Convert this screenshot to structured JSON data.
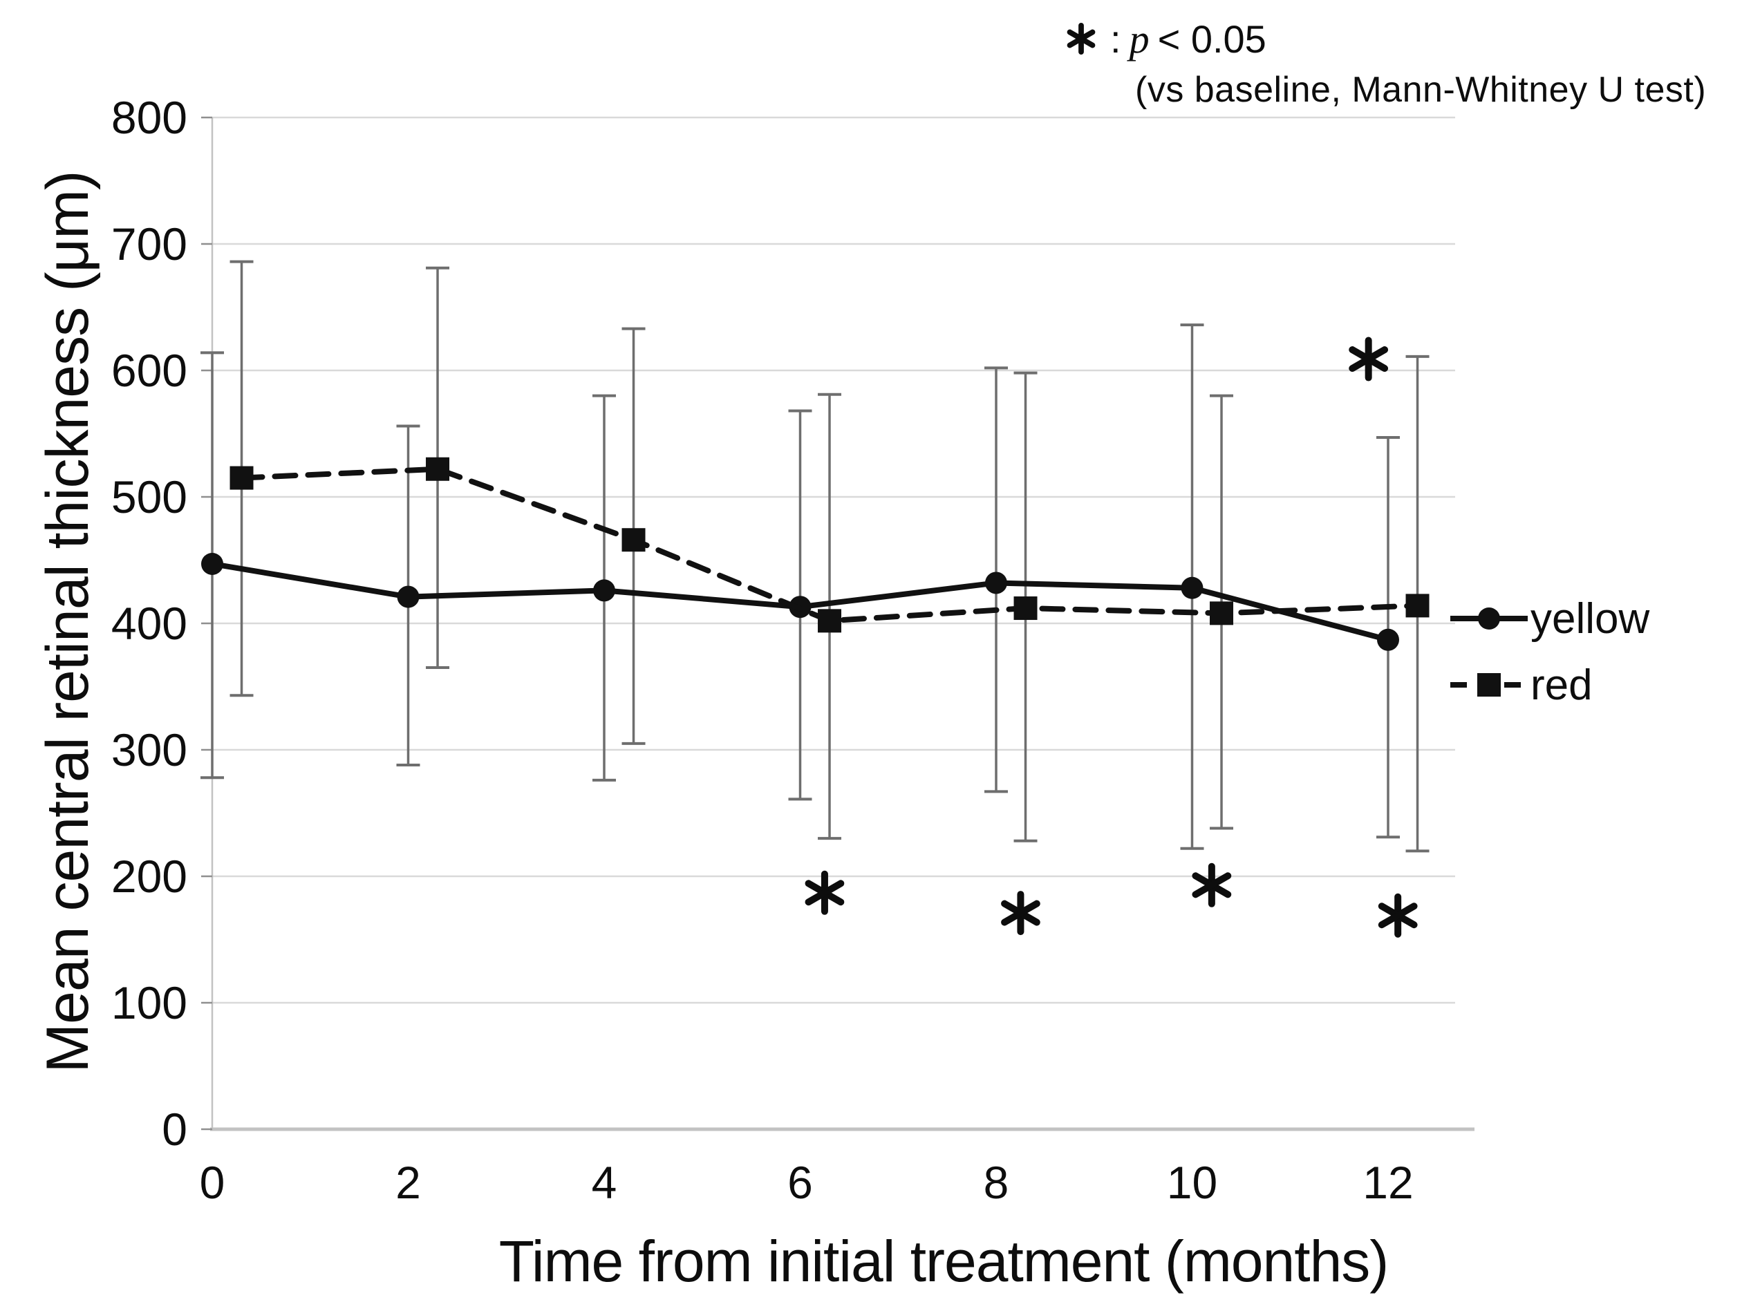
{
  "annotation": {
    "symbol": "*",
    "separator": ":",
    "p_symbol": "p",
    "threshold": "< 0.05",
    "line2": "(vs baseline, Mann-Whitney U test)"
  },
  "legend": {
    "position": "right",
    "items": [
      {
        "label": "yellow",
        "marker": "circle",
        "line": "solid"
      },
      {
        "label": "red",
        "marker": "square",
        "line": "dashed"
      }
    ]
  },
  "colors": {
    "series": "#111111",
    "error_bar": "#6e6e6e",
    "gridline": "#d9d9d9",
    "axis": "#c2c2c2",
    "tick": "#8f8f8f",
    "text": "#0d0d0d"
  },
  "chart_data": {
    "type": "line",
    "title": "",
    "xlabel": "Time from initial treatment (months)",
    "ylabel": "Mean central retinal thickness (μm)",
    "xlim": [
      0,
      12.7
    ],
    "ylim": [
      0,
      800
    ],
    "x_ticks": [
      0,
      2,
      4,
      6,
      8,
      10,
      12
    ],
    "y_ticks": [
      0,
      100,
      200,
      300,
      400,
      500,
      600,
      700,
      800
    ],
    "grid": "horizontal",
    "legend_position": "right",
    "series": [
      {
        "name": "yellow",
        "line": "solid",
        "marker": "circle",
        "x": [
          0,
          2,
          4,
          6,
          8,
          10,
          12
        ],
        "y": [
          447,
          421,
          426,
          413,
          432,
          428,
          387
        ],
        "err_low": [
          278,
          288,
          276,
          261,
          267,
          222,
          231
        ],
        "err_high": [
          614,
          556,
          580,
          568,
          602,
          636,
          547
        ]
      },
      {
        "name": "red",
        "line": "dashed",
        "marker": "square",
        "x": [
          0.3,
          2.3,
          4.3,
          6.3,
          8.3,
          10.3,
          12.3
        ],
        "y": [
          515,
          522,
          466,
          402,
          412,
          408,
          414
        ],
        "err_low": [
          343,
          365,
          305,
          230,
          228,
          238,
          220
        ],
        "err_high": [
          686,
          681,
          633,
          581,
          598,
          580,
          611
        ]
      }
    ],
    "significance_marks": {
      "symbol": "*",
      "meaning": "p < 0.05 vs baseline (red series, months 6, 8, 10, 12)",
      "below": [
        {
          "x": 6.25,
          "y": 187
        },
        {
          "x": 8.25,
          "y": 171
        },
        {
          "x": 10.2,
          "y": 193
        },
        {
          "x": 12.1,
          "y": 169
        }
      ],
      "above": [
        {
          "x": 11.8,
          "y": 609
        }
      ]
    }
  }
}
